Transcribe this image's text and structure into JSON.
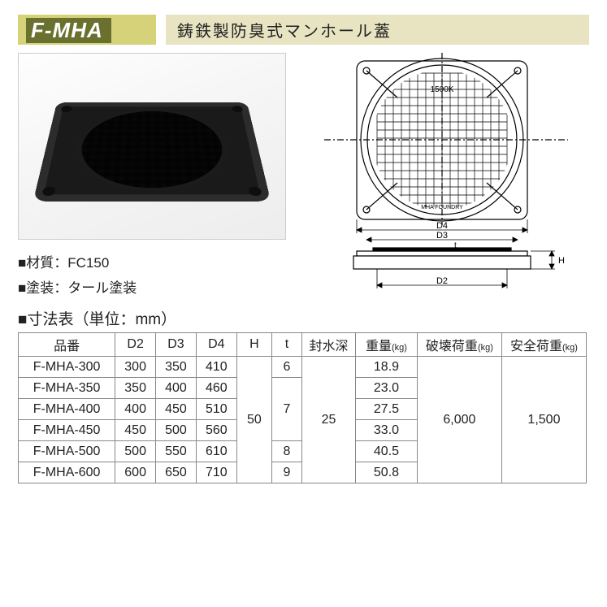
{
  "header": {
    "product_code": "F-MHA",
    "product_title": "鋳鉄製防臭式マンホール蓋"
  },
  "specs": {
    "material_label": "■材質：",
    "material_value": "FC150",
    "coating_label": "■塗装：",
    "coating_value": "タール塗装"
  },
  "drawing": {
    "load_marking": "1500K",
    "foundry_marking": "MHA FOUNDRY",
    "dims": {
      "D2": "D2",
      "D3": "D3",
      "D4": "D4",
      "H": "H",
      "t": "t"
    }
  },
  "table": {
    "title": "■寸法表（単位：mm）",
    "columns": {
      "item": "品番",
      "D2": "D2",
      "D3": "D3",
      "D4": "D4",
      "H": "H",
      "t": "t",
      "seal_depth": "封水深",
      "weight": "重量",
      "weight_unit": "(kg)",
      "break_load": "破壊荷重",
      "break_unit": "(kg)",
      "safe_load": "安全荷重",
      "safe_unit": "(kg)"
    },
    "merged": {
      "H": "50",
      "seal_depth": "25",
      "break_load": "6,000",
      "safe_load": "1,500"
    },
    "rows": [
      {
        "item": "F-MHA-300",
        "D2": "300",
        "D3": "350",
        "D4": "410",
        "t": "6",
        "weight": "18.9"
      },
      {
        "item": "F-MHA-350",
        "D2": "350",
        "D3": "400",
        "D4": "460",
        "t": "7",
        "weight": "23.0"
      },
      {
        "item": "F-MHA-400",
        "D2": "400",
        "D3": "450",
        "D4": "510",
        "t": "7",
        "weight": "27.5"
      },
      {
        "item": "F-MHA-450",
        "D2": "450",
        "D3": "500",
        "D4": "560",
        "t": "7",
        "weight": "33.0"
      },
      {
        "item": "F-MHA-500",
        "D2": "500",
        "D3": "550",
        "D4": "610",
        "t": "8",
        "weight": "40.5"
      },
      {
        "item": "F-MHA-600",
        "D2": "600",
        "D3": "650",
        "D4": "710",
        "t": "9",
        "weight": "50.8"
      }
    ],
    "t_groups": [
      {
        "value": "6",
        "span": 1
      },
      {
        "value": "7",
        "span": 3
      },
      {
        "value": "8",
        "span": 1
      },
      {
        "value": "9",
        "span": 1
      }
    ]
  },
  "style": {
    "accent_bg": "#d6d27a",
    "accent_dark": "#6a702e",
    "title_bg": "#e8e4c2",
    "border_color": "#888888",
    "text_color": "#222222",
    "page_bg": "#ffffff",
    "font_size_header": 26,
    "font_size_title": 20,
    "font_size_body": 17,
    "font_size_table": 16
  }
}
